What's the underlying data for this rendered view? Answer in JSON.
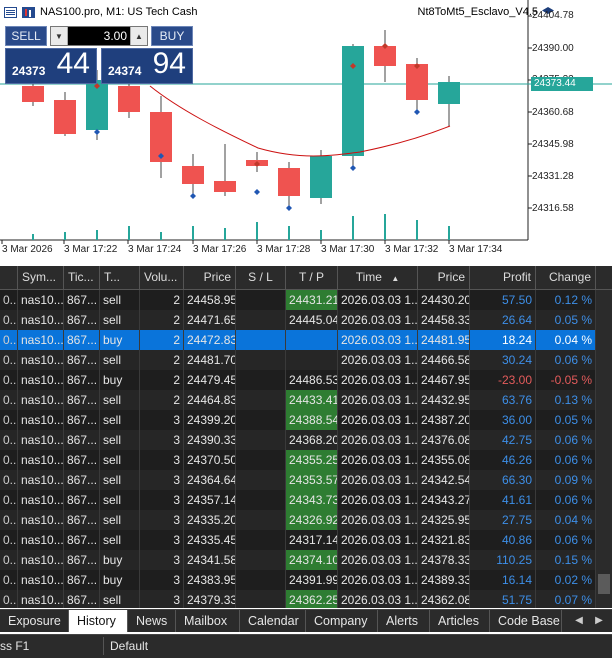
{
  "chart": {
    "symbol": "NAS100.pro, M1:  US Tech Cash",
    "ea_name": "Nt8ToMt5_Esclavo_V4.5",
    "current_price": "24373.44",
    "price_labels": [
      "24404.78",
      "24390.00",
      "24375.22",
      "24360.68",
      "24345.98",
      "24331.28",
      "24316.58"
    ],
    "time_labels": [
      "3 Mar 2026",
      "3 Mar 17:22",
      "3 Mar 17:24",
      "3 Mar 17:26",
      "3 Mar 17:28",
      "3 Mar 17:30",
      "3 Mar 17:32",
      "3 Mar 17:34"
    ],
    "colors": {
      "bull": "#26a69a",
      "bear": "#ef5350",
      "ma": "#cc1111"
    }
  },
  "trade_panel": {
    "sell_label": "SELL",
    "buy_label": "BUY",
    "volume": "3.00",
    "bid_small": "24373",
    "bid_big": "44",
    "ask_small": "24374",
    "ask_big": "94"
  },
  "grid": {
    "headers": [
      "Sym...",
      "Tic...",
      "T...",
      "Volu...",
      "Price",
      "S / L",
      "T / P",
      "Time",
      "Price",
      "Profit",
      "Change"
    ],
    "rows": [
      {
        "sym": "nas10...",
        "ticket": "867...",
        "type": "sell",
        "vol": "2",
        "price": "24458.95",
        "sl": "",
        "tp": "24431.21",
        "tp_hl": true,
        "time": "2026.03.03 1...",
        "cur": "24430.20",
        "profit": "57.50",
        "change": "0.12 %",
        "neg": false
      },
      {
        "sym": "nas10...",
        "ticket": "867...",
        "type": "sell",
        "vol": "2",
        "price": "24471.65",
        "sl": "",
        "tp": "24445.04",
        "tp_hl": false,
        "time": "2026.03.03 1...",
        "cur": "24458.33",
        "profit": "26.64",
        "change": "0.05 %",
        "neg": false
      },
      {
        "sym": "nas10...",
        "ticket": "867...",
        "type": "buy",
        "vol": "2",
        "price": "24472.83",
        "sl": "",
        "tp": "",
        "tp_hl": false,
        "time": "2026.03.03 1...",
        "cur": "24481.95",
        "profit": "18.24",
        "change": "0.04 %",
        "neg": false,
        "selected": true
      },
      {
        "sym": "nas10...",
        "ticket": "867...",
        "type": "sell",
        "vol": "2",
        "price": "24481.70",
        "sl": "",
        "tp": "",
        "tp_hl": false,
        "time": "2026.03.03 1...",
        "cur": "24466.58",
        "profit": "30.24",
        "change": "0.06 %",
        "neg": false
      },
      {
        "sym": "nas10...",
        "ticket": "867...",
        "type": "buy",
        "vol": "2",
        "price": "24479.45",
        "sl": "",
        "tp": "24486.53",
        "tp_hl": false,
        "time": "2026.03.03 1...",
        "cur": "24467.95",
        "profit": "-23.00",
        "change": "-0.05 %",
        "neg": true
      },
      {
        "sym": "nas10...",
        "ticket": "867...",
        "type": "sell",
        "vol": "2",
        "price": "24464.83",
        "sl": "",
        "tp": "24433.41",
        "tp_hl": true,
        "time": "2026.03.03 1...",
        "cur": "24432.95",
        "profit": "63.76",
        "change": "0.13 %",
        "neg": false
      },
      {
        "sym": "nas10...",
        "ticket": "867...",
        "type": "sell",
        "vol": "3",
        "price": "24399.20",
        "sl": "",
        "tp": "24388.54",
        "tp_hl": true,
        "time": "2026.03.03 1...",
        "cur": "24387.20",
        "profit": "36.00",
        "change": "0.05 %",
        "neg": false
      },
      {
        "sym": "nas10...",
        "ticket": "867...",
        "type": "sell",
        "vol": "3",
        "price": "24390.33",
        "sl": "",
        "tp": "24368.20",
        "tp_hl": false,
        "time": "2026.03.03 1...",
        "cur": "24376.08",
        "profit": "42.75",
        "change": "0.06 %",
        "neg": false
      },
      {
        "sym": "nas10...",
        "ticket": "867...",
        "type": "sell",
        "vol": "3",
        "price": "24370.50",
        "sl": "",
        "tp": "24355.25",
        "tp_hl": true,
        "time": "2026.03.03 1...",
        "cur": "24355.08",
        "profit": "46.26",
        "change": "0.06 %",
        "neg": false
      },
      {
        "sym": "nas10...",
        "ticket": "867...",
        "type": "sell",
        "vol": "3",
        "price": "24364.64",
        "sl": "",
        "tp": "24353.57",
        "tp_hl": true,
        "time": "2026.03.03 1...",
        "cur": "24342.54",
        "profit": "66.30",
        "change": "0.09 %",
        "neg": false
      },
      {
        "sym": "nas10...",
        "ticket": "867...",
        "type": "sell",
        "vol": "3",
        "price": "24357.14",
        "sl": "",
        "tp": "24343.73",
        "tp_hl": true,
        "time": "2026.03.03 1...",
        "cur": "24343.27",
        "profit": "41.61",
        "change": "0.06 %",
        "neg": false
      },
      {
        "sym": "nas10...",
        "ticket": "867...",
        "type": "sell",
        "vol": "3",
        "price": "24335.20",
        "sl": "",
        "tp": "24326.92",
        "tp_hl": true,
        "time": "2026.03.03 1...",
        "cur": "24325.95",
        "profit": "27.75",
        "change": "0.04 %",
        "neg": false
      },
      {
        "sym": "nas10...",
        "ticket": "867...",
        "type": "sell",
        "vol": "3",
        "price": "24335.45",
        "sl": "",
        "tp": "24317.14",
        "tp_hl": false,
        "time": "2026.03.03 1...",
        "cur": "24321.83",
        "profit": "40.86",
        "change": "0.06 %",
        "neg": false
      },
      {
        "sym": "nas10...",
        "ticket": "867...",
        "type": "buy",
        "vol": "3",
        "price": "24341.58",
        "sl": "",
        "tp": "24374.10",
        "tp_hl": true,
        "time": "2026.03.03 1...",
        "cur": "24378.33",
        "profit": "110.25",
        "change": "0.15 %",
        "neg": false
      },
      {
        "sym": "nas10...",
        "ticket": "867...",
        "type": "buy",
        "vol": "3",
        "price": "24383.95",
        "sl": "",
        "tp": "24391.99",
        "tp_hl": false,
        "time": "2026.03.03 1...",
        "cur": "24389.33",
        "profit": "16.14",
        "change": "0.02 %",
        "neg": false
      },
      {
        "sym": "nas10...",
        "ticket": "867...",
        "type": "sell",
        "vol": "3",
        "price": "24379.33",
        "sl": "",
        "tp": "24362.25",
        "tp_hl": true,
        "time": "2026.03.03 1...",
        "cur": "24362.08",
        "profit": "51.75",
        "change": "0.07 %",
        "neg": false
      }
    ]
  },
  "tabs": [
    "Exposure",
    "History",
    "News",
    "Mailbox",
    "Calendar",
    "Company",
    "Alerts",
    "Articles",
    "Code Base"
  ],
  "active_tab": "History",
  "status": {
    "help": "ss F1",
    "profile": "Default"
  }
}
